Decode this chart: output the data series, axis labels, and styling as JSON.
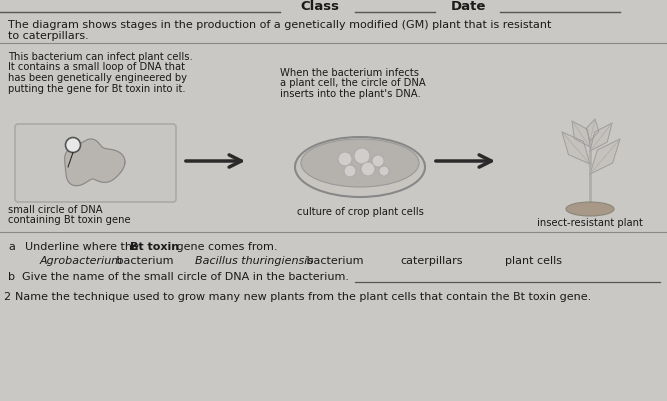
{
  "background_color": "#cac8c4",
  "text_color": "#1a1a1a",
  "header_class": "Class",
  "header_date": "Date",
  "title_line1": "The diagram shows stages in the production of a genetically modified (GM) plant that is resistant",
  "title_line2": "to caterpillars.",
  "desc1_lines": [
    "This bacterium can infect plant cells.",
    "It contains a small loop of DNA that",
    "has been genetically engineered by",
    "putting the gene for Bt toxin into it."
  ],
  "desc2_lines": [
    "When the bacterium infects",
    "a plant cell, the circle of DNA",
    "inserts into the plant's DNA."
  ],
  "label1_line1": "small circle of DNA",
  "label1_line2": "containing Bt toxin gene",
  "label2": "culture of crop plant cells",
  "label3": "insect-resistant plant",
  "q_a_pre": "a   Underline where the ",
  "q_a_bold": "Bt toxin",
  "q_a_post": " gene comes from.",
  "opt1_italic": "Agrobacterium",
  "opt1_normal": " bacterium",
  "opt2_italic": "Bacillus thuringiensis",
  "opt2_normal": " bacterium",
  "opt3": "caterpillars",
  "opt4": "plant cells",
  "q_b_pre": "b   Give the name of the small circle of DNA in the bacterium.",
  "q_2": "2   Name the technique used to grow many new plants from the plant cells that contain the Bt toxin gene.",
  "arrow_color": "#2a2a2a",
  "box_edge_color": "#aaaaaa",
  "box_fill_color": "#c8c6c2",
  "blob_fill": "#b8b5b0",
  "blob_edge": "#888888",
  "plasmid_fill": "#e8e8e8",
  "dish_outer_fill": "#c8c5c0",
  "dish_inner_fill": "#b5b2ae",
  "dish_blob_fill": "#d0cdca",
  "plant_stem_color": "#b0adaa",
  "plant_leaf_color": "#c5c2be",
  "soil_color": "#a89888",
  "line_color": "#555555",
  "separator_color": "#888888"
}
